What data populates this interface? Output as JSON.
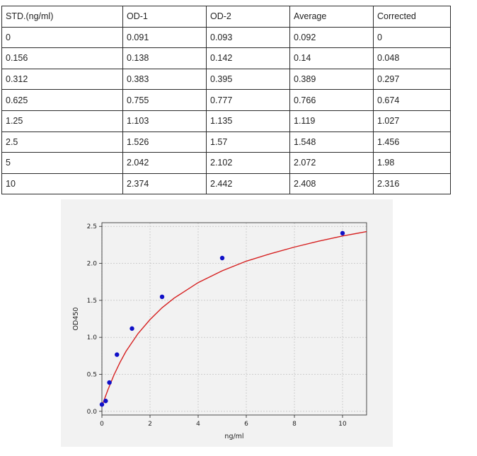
{
  "table": {
    "headers": [
      "STD.(ng/ml)",
      "OD-1",
      "OD-2",
      "Average",
      "Corrected"
    ],
    "rows": [
      [
        "0",
        "0.091",
        "0.093",
        "0.092",
        "0"
      ],
      [
        "0.156",
        "0.138",
        "0.142",
        "0.14",
        "0.048"
      ],
      [
        "0.312",
        "0.383",
        "0.395",
        "0.389",
        "0.297"
      ],
      [
        "0.625",
        "0.755",
        "0.777",
        "0.766",
        "0.674"
      ],
      [
        "1.25",
        "1.103",
        "1.135",
        "1.119",
        "1.027"
      ],
      [
        "2.5",
        "1.526",
        "1.57",
        "1.548",
        "1.456"
      ],
      [
        "5",
        "2.042",
        "2.102",
        "2.072",
        "1.98"
      ],
      [
        "10",
        "2.374",
        "2.442",
        "2.408",
        "2.316"
      ]
    ]
  },
  "chart_data": {
    "type": "scatter",
    "title": "",
    "xlabel": "ng/ml",
    "ylabel": "OD450",
    "xlim": [
      0,
      11
    ],
    "ylim": [
      -0.05,
      2.55
    ],
    "xticks": [
      0,
      2,
      4,
      6,
      8,
      10
    ],
    "yticks": [
      0.0,
      0.5,
      1.0,
      1.5,
      2.0,
      2.5
    ],
    "xtick_labels": [
      "0",
      "2",
      "4",
      "6",
      "8",
      "10"
    ],
    "ytick_labels": [
      "0.0",
      "0.5",
      "1.0",
      "1.5",
      "2.0",
      "2.5"
    ],
    "grid": true,
    "series": [
      {
        "kind": "points",
        "color": "#1010c8",
        "x": [
          0,
          0.156,
          0.312,
          0.625,
          1.25,
          2.5,
          5,
          10
        ],
        "y": [
          0.092,
          0.14,
          0.389,
          0.766,
          1.119,
          1.548,
          2.072,
          2.408
        ]
      },
      {
        "kind": "fitted-curve",
        "color": "#d62020",
        "x": [
          0,
          0.1,
          0.25,
          0.5,
          0.75,
          1,
          1.5,
          2,
          2.5,
          3,
          4,
          5,
          6,
          7,
          8,
          9,
          10,
          11
        ],
        "y": [
          0.07,
          0.16,
          0.29,
          0.49,
          0.66,
          0.81,
          1.05,
          1.24,
          1.4,
          1.53,
          1.74,
          1.9,
          2.03,
          2.13,
          2.22,
          2.3,
          2.37,
          2.43
        ]
      }
    ]
  }
}
